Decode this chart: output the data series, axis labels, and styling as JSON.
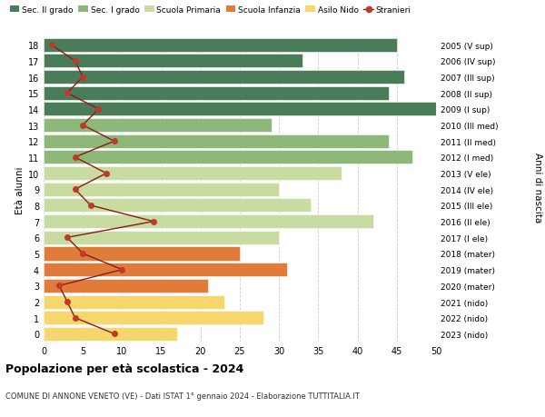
{
  "ages": [
    0,
    1,
    2,
    3,
    4,
    5,
    6,
    7,
    8,
    9,
    10,
    11,
    12,
    13,
    14,
    15,
    16,
    17,
    18
  ],
  "years_labels": [
    "2023 (nido)",
    "2022 (nido)",
    "2021 (nido)",
    "2020 (mater)",
    "2019 (mater)",
    "2018 (mater)",
    "2017 (I ele)",
    "2016 (II ele)",
    "2015 (III ele)",
    "2014 (IV ele)",
    "2013 (V ele)",
    "2012 (I med)",
    "2011 (II med)",
    "2010 (III med)",
    "2009 (I sup)",
    "2008 (II sup)",
    "2007 (III sup)",
    "2006 (IV sup)",
    "2005 (V sup)"
  ],
  "bar_values": [
    17,
    28,
    23,
    21,
    31,
    25,
    30,
    42,
    34,
    30,
    38,
    47,
    44,
    29,
    50,
    44,
    46,
    33,
    45
  ],
  "bar_colors": [
    "#f5d76e",
    "#f5d76e",
    "#f5d76e",
    "#e07b39",
    "#e07b39",
    "#e07b39",
    "#c8dba0",
    "#c8dba0",
    "#c8dba0",
    "#c8dba0",
    "#c8dba0",
    "#8db87a",
    "#8db87a",
    "#8db87a",
    "#4a7c59",
    "#4a7c59",
    "#4a7c59",
    "#4a7c59",
    "#4a7c59"
  ],
  "stranieri_values": [
    9,
    4,
    3,
    2,
    10,
    5,
    3,
    14,
    6,
    4,
    8,
    4,
    9,
    5,
    7,
    3,
    5,
    4,
    1
  ],
  "legend_labels": [
    "Sec. II grado",
    "Sec. I grado",
    "Scuola Primaria",
    "Scuola Infanzia",
    "Asilo Nido",
    "Stranieri"
  ],
  "legend_colors": [
    "#4a7c59",
    "#8db87a",
    "#c8dba0",
    "#e07b39",
    "#f5d76e",
    "#c0392b"
  ],
  "ylabel_left": "Età alunni",
  "ylabel_right": "Anni di nascita",
  "title": "Popolazione per età scolastica - 2024",
  "subtitle": "COMUNE DI ANNONE VENETO (VE) - Dati ISTAT 1° gennaio 2024 - Elaborazione TUTTITALIA.IT",
  "xlim": [
    0,
    50
  ],
  "background_color": "#ffffff",
  "grid_color": "#cccccc",
  "stranieri_color": "#c0392b",
  "stranieri_line_color": "#8b1a1a"
}
